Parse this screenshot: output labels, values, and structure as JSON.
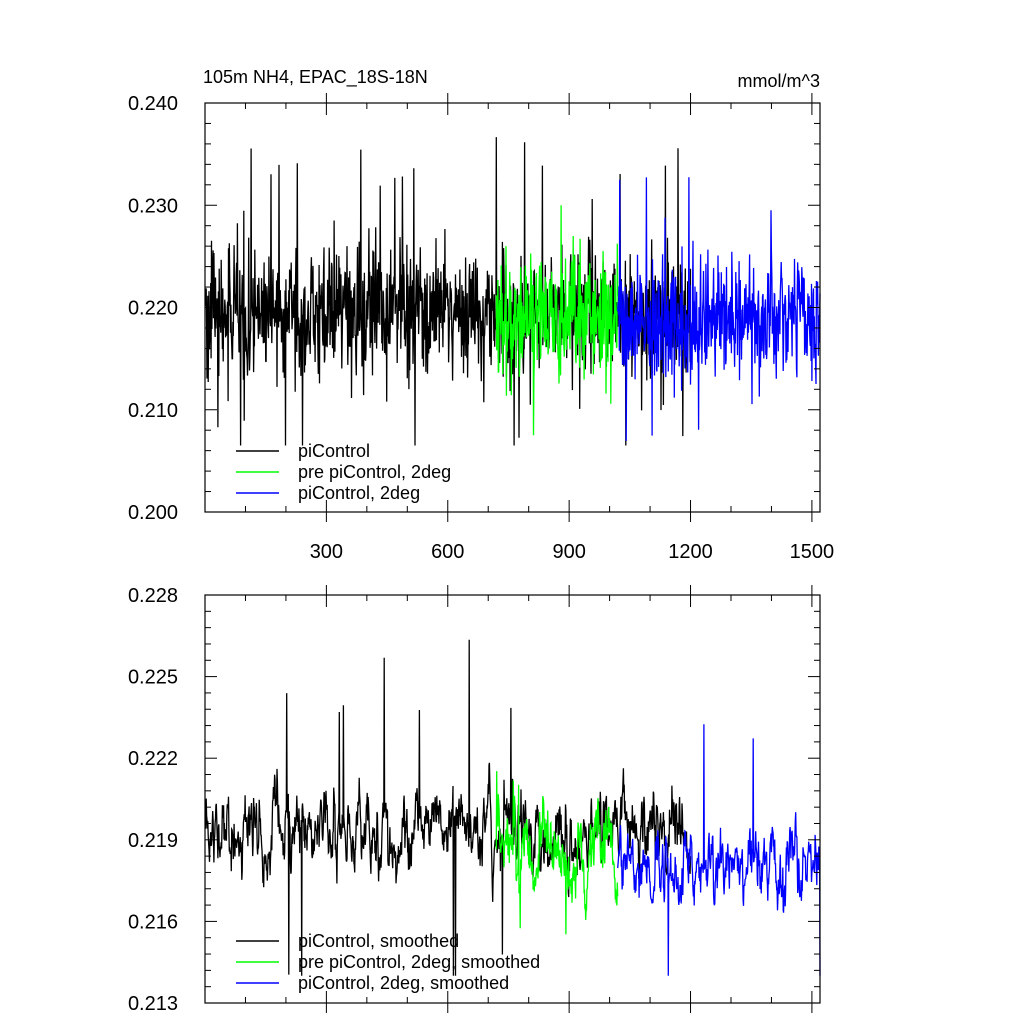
{
  "title_left": "105m NH4, EPAC_18S-18N",
  "title_right": "mmol/m^3",
  "colors": {
    "picontrol": "#000000",
    "pre_picontrol_2deg": "#00ff00",
    "picontrol_2deg": "#0000ff"
  },
  "chart_data": [
    {
      "type": "line",
      "title": "105m NH4, EPAC_18S-18N",
      "units": "mmol/m^3",
      "xlim": [
        0,
        1520
      ],
      "ylim": [
        0.2,
        0.24
      ],
      "x_ticks": [
        300,
        600,
        900,
        1200,
        1500
      ],
      "x_tick_labels": [
        "300",
        "600",
        "900",
        "1200",
        "1500"
      ],
      "y_ticks": [
        0.2,
        0.21,
        0.22,
        0.23,
        0.24
      ],
      "y_tick_labels": [
        "0.200",
        "0.210",
        "0.220",
        "0.230",
        "0.240"
      ],
      "legend": {
        "placement": "bottom-left"
      },
      "series": [
        {
          "name": "piControl",
          "color": "#000000",
          "x_start": 1,
          "x_end": 1200,
          "mean": 0.2195,
          "spread": 0.0055,
          "min": 0.2065,
          "max": 0.2378
        },
        {
          "name": "pre piControl, 2deg",
          "color": "#00ff00",
          "x_start": 720,
          "x_end": 1020,
          "mean": 0.219,
          "spread": 0.005,
          "min": 0.2058,
          "max": 0.23
        },
        {
          "name": "piControl, 2deg",
          "color": "#0000ff",
          "x_start": 1020,
          "x_end": 1520,
          "mean": 0.2185,
          "spread": 0.0055,
          "min": 0.204,
          "max": 0.233
        }
      ]
    },
    {
      "type": "line",
      "xlim": [
        0,
        1520
      ],
      "ylim": [
        0.213,
        0.228
      ],
      "x_ticks": [
        300,
        600,
        900,
        1200,
        1500
      ],
      "y_ticks": [
        0.213,
        0.216,
        0.219,
        0.222,
        0.225,
        0.228
      ],
      "y_tick_labels": [
        "0.213",
        "0.216",
        "0.219",
        "0.222",
        "0.225",
        "0.228"
      ],
      "legend": {
        "placement": "bottom-left"
      },
      "series": [
        {
          "name": "piControl, smoothed",
          "color": "#000000",
          "x_start": 1,
          "x_end": 1200,
          "mean": 0.2193,
          "spread": 0.0012,
          "min": 0.214,
          "max": 0.2266
        },
        {
          "name": "pre piControl, 2deg, smoothed",
          "color": "#00ff00",
          "x_start": 720,
          "x_end": 1020,
          "mean": 0.2185,
          "spread": 0.0013,
          "min": 0.2148,
          "max": 0.2224
        },
        {
          "name": "piControl, 2deg, smoothed",
          "color": "#0000ff",
          "x_start": 1020,
          "x_end": 1520,
          "mean": 0.2182,
          "spread": 0.0012,
          "min": 0.214,
          "max": 0.2241
        }
      ]
    }
  ]
}
